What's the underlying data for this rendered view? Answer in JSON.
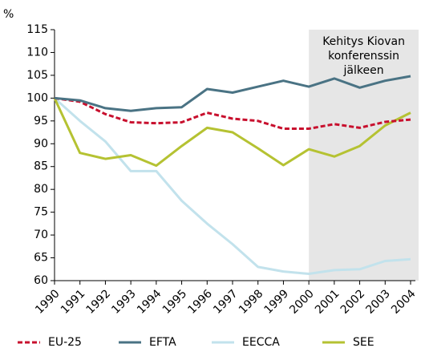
{
  "chart_data": {
    "type": "line",
    "y_label": "%",
    "x": [
      1990,
      1991,
      1992,
      1993,
      1994,
      1995,
      1996,
      1997,
      1998,
      1999,
      2000,
      2001,
      2002,
      2003,
      2004
    ],
    "xlim": [
      1990,
      2004
    ],
    "xticks": [
      1990,
      1991,
      1992,
      1993,
      1994,
      1995,
      1996,
      1997,
      1998,
      1999,
      2000,
      2001,
      2002,
      2003,
      2004
    ],
    "ylim": [
      60,
      115
    ],
    "yticks": [
      60,
      65,
      70,
      75,
      80,
      85,
      90,
      95,
      100,
      105,
      110,
      115
    ],
    "shaded_region": {
      "x_start": 2000,
      "label": [
        "Kehitys Kiovan",
        "konferenssin",
        "jälkeen"
      ]
    },
    "series": [
      {
        "name": "EU-25",
        "color": "#c8102e",
        "dashed": true,
        "values": [
          100,
          99.2,
          96.5,
          94.7,
          94.5,
          94.7,
          96.8,
          95.5,
          95,
          93.3,
          93.3,
          94.3,
          93.5,
          94.8,
          95.3
        ]
      },
      {
        "name": "EFTA",
        "color": "#4a7384",
        "dashed": false,
        "values": [
          100,
          99.5,
          97.8,
          97.2,
          97.8,
          98,
          102,
          101.2,
          102.5,
          103.8,
          102.5,
          104.3,
          102.3,
          103.8,
          104.8
        ]
      },
      {
        "name": "EECCA",
        "color": "#c2e2ec",
        "dashed": false,
        "values": [
          100,
          95,
          90.5,
          84,
          84,
          77.5,
          72.5,
          68,
          63,
          62,
          61.5,
          62.3,
          62.5,
          64.3,
          64.7
        ]
      },
      {
        "name": "SEE",
        "color": "#b5c232",
        "dashed": false,
        "values": [
          100,
          88,
          86.7,
          87.5,
          85.2,
          89.5,
          93.5,
          92.5,
          89,
          85.3,
          88.8,
          87.2,
          89.5,
          94,
          96.8
        ]
      }
    ]
  }
}
